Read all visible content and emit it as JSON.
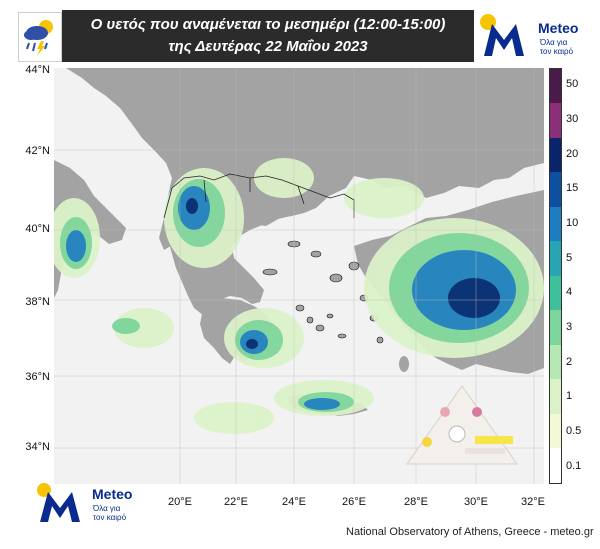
{
  "title": {
    "line1": "Ο υετός που αναμένεται το μεσημέρι (12:00-15:00)",
    "line2": "της Δευτέρας 22 Μαΐου 2023"
  },
  "logo": {
    "wordmark": "Meteo",
    "tagline_line1": "Όλα για",
    "tagline_line2": "τον καιρό"
  },
  "map": {
    "latitude_labels": [
      "44°N",
      "42°N",
      "40°N",
      "38°N",
      "36°N",
      "34°N"
    ],
    "longitude_labels": [
      "20°E",
      "22°E",
      "24°E",
      "26°E",
      "28°E",
      "30°E",
      "32°E"
    ]
  },
  "colorbar": {
    "labels": [
      "50",
      "30",
      "20",
      "15",
      "10",
      "5",
      "4",
      "3",
      "2",
      "1",
      "0.5",
      "0.1"
    ],
    "colors": [
      "#4a1a4a",
      "#8a2f78",
      "#08246b",
      "#0e4fa0",
      "#1e7cc1",
      "#27a5b3",
      "#3fc09a",
      "#7ed59b",
      "#b5e8b2",
      "#dbf2c8",
      "#f3f8d7",
      "#ffffff"
    ]
  },
  "footer": {
    "credit": "National Observatory of Athens, Greece - meteo.gr"
  },
  "colors": {
    "land_grey": "#a3a3a3",
    "sea": "#f2f2f2",
    "title_bg": "#2b2b2b",
    "brand_blue": "#0b2a8f",
    "sun_yellow": "#f6c400"
  }
}
